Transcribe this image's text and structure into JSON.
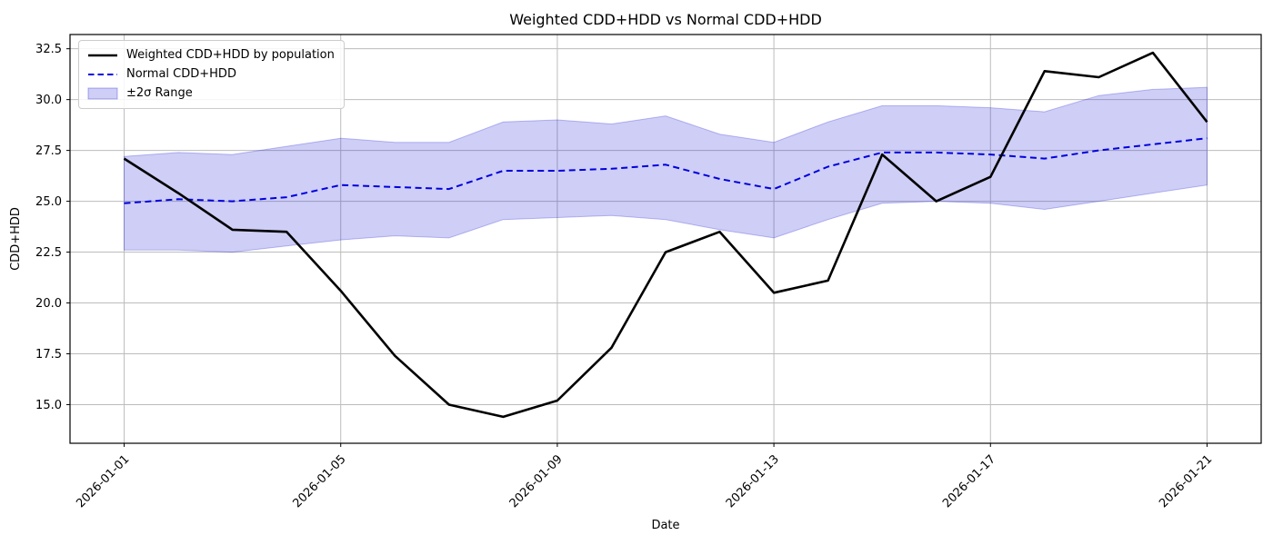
{
  "chart_data": {
    "type": "line",
    "title": "Weighted CDD+HDD vs Normal CDD+HDD",
    "xlabel": "Date",
    "ylabel": "CDD+HDD",
    "x": [
      "2026-01-01",
      "2026-01-02",
      "2026-01-03",
      "2026-01-04",
      "2026-01-05",
      "2026-01-06",
      "2026-01-07",
      "2026-01-08",
      "2026-01-09",
      "2026-01-10",
      "2026-01-11",
      "2026-01-12",
      "2026-01-13",
      "2026-01-14",
      "2026-01-15",
      "2026-01-16",
      "2026-01-17",
      "2026-01-18",
      "2026-01-19",
      "2026-01-20",
      "2026-01-21"
    ],
    "series": [
      {
        "name": "Weighted CDD+HDD by population",
        "color": "#000000",
        "style": "solid",
        "width": 2.6,
        "values": [
          27.1,
          25.4,
          23.6,
          23.5,
          20.6,
          17.4,
          15.0,
          14.4,
          15.2,
          17.8,
          22.5,
          23.5,
          20.5,
          21.1,
          27.3,
          25.0,
          26.2,
          31.4,
          31.1,
          32.3,
          28.9
        ]
      },
      {
        "name": "Normal CDD+HDD",
        "color": "#0000dd",
        "style": "dashed",
        "width": 2.0,
        "values": [
          24.9,
          25.1,
          25.0,
          25.2,
          25.8,
          25.7,
          25.6,
          26.5,
          26.5,
          26.6,
          26.8,
          26.1,
          25.6,
          26.7,
          27.4,
          27.4,
          27.3,
          27.1,
          27.5,
          27.8,
          28.1
        ]
      }
    ],
    "band": {
      "label": "±2σ Range",
      "fill": "rgba(30,30,215,0.22)",
      "edge": "rgba(30,30,215,0.28)",
      "upper": [
        27.2,
        27.4,
        27.3,
        27.7,
        28.1,
        27.9,
        27.9,
        28.9,
        29.0,
        28.8,
        29.2,
        28.3,
        27.9,
        28.9,
        29.7,
        29.7,
        29.6,
        29.4,
        30.2,
        30.5,
        30.6
      ],
      "lower": [
        22.6,
        22.6,
        22.5,
        22.8,
        23.1,
        23.3,
        23.2,
        24.1,
        24.2,
        24.3,
        24.1,
        23.6,
        23.2,
        24.1,
        24.9,
        25.0,
        24.9,
        24.6,
        25.0,
        25.4,
        25.8
      ]
    },
    "xticks": {
      "indices": [
        0,
        4,
        8,
        12,
        16,
        20
      ],
      "labels": [
        "2026-01-01",
        "2026-01-05",
        "2026-01-09",
        "2026-01-13",
        "2026-01-17",
        "2026-01-21"
      ],
      "rotation": 45
    },
    "yticks": [
      15.0,
      17.5,
      20.0,
      22.5,
      25.0,
      27.5,
      30.0,
      32.5
    ],
    "ytick_labels": [
      "15.0",
      "17.5",
      "20.0",
      "22.5",
      "25.0",
      "27.5",
      "30.0",
      "32.5"
    ],
    "xlim_days": [
      -1,
      21
    ],
    "ylim": [
      13.1,
      33.2
    ],
    "grid": true,
    "grid_color": "#bcbcbc",
    "legend_position": "upper-left"
  }
}
